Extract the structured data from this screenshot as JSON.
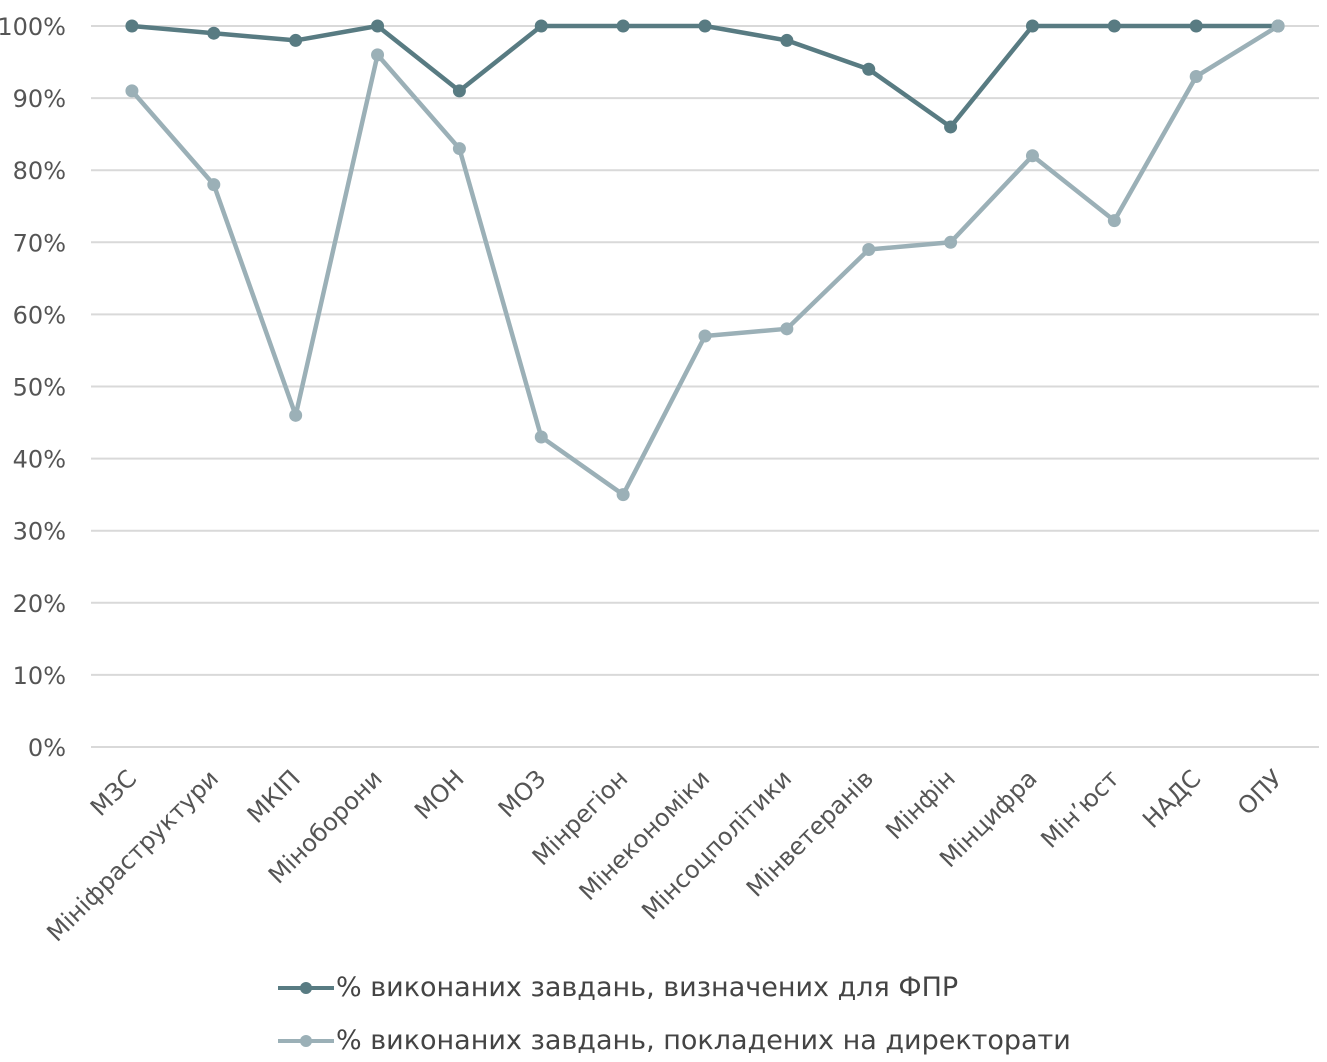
{
  "chart_data": {
    "type": "line",
    "categories": [
      "МЗС",
      "Мініфраструктури",
      "МКІП",
      "Міноборони",
      "МОН",
      "МОЗ",
      "Мінрегіон",
      "Мінекономіки",
      "Мінсоцполітики",
      "Мінветеранів",
      "Мінфін",
      "Мінцифра",
      "Мін’юст",
      "НАДС",
      "ОПУ"
    ],
    "series": [
      {
        "name": "% виконаних завдань, визначених для ФПР",
        "color": "#587b82",
        "values": [
          100,
          99,
          98,
          100,
          91,
          100,
          100,
          100,
          98,
          94,
          86,
          100,
          100,
          100,
          100
        ]
      },
      {
        "name": "% виконаних завдань, покладених на директорати",
        "color": "#9bb0b7",
        "values": [
          91,
          78,
          46,
          96,
          83,
          43,
          35,
          57,
          58,
          69,
          70,
          82,
          73,
          93,
          100
        ]
      }
    ],
    "y_ticks": [
      "0%",
      "10%",
      "20%",
      "30%",
      "40%",
      "50%",
      "60%",
      "70%",
      "80%",
      "90%",
      "100%"
    ],
    "ylim": [
      0,
      100
    ],
    "grid": true,
    "legend_position": "bottom"
  }
}
